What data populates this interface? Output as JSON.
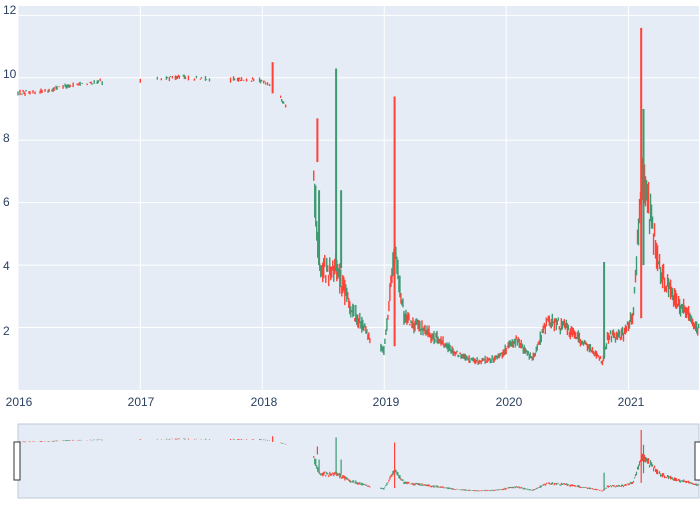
{
  "chart_data": {
    "type": "candlestick",
    "title": "",
    "xlabel": "",
    "ylabel": "",
    "x_ticks": [
      "2016",
      "2017",
      "2018",
      "2019",
      "2020",
      "2021"
    ],
    "y_ticks": [
      "2",
      "4",
      "6",
      "8",
      "10",
      "12"
    ],
    "ylim": [
      0,
      12.3
    ],
    "xlim": [
      "2016-01-01",
      "2021-07-31"
    ],
    "grid": true,
    "legend": "none",
    "range_slider": true,
    "colors": {
      "increasing": "#3d9970",
      "decreasing": "#ff4136",
      "plot_bg": "#e5ecf6",
      "grid": "#ffffff",
      "tick_text": "#2a3f5f"
    },
    "trend": [
      [
        "2016-01-01",
        9.5
      ],
      [
        "2016-04-01",
        9.6
      ],
      [
        "2016-07-01",
        9.8
      ],
      [
        "2016-10-01",
        9.9
      ],
      [
        "2017-01-01",
        9.9
      ],
      [
        "2017-04-01",
        10.0
      ],
      [
        "2017-07-01",
        10.0
      ],
      [
        "2017-10-01",
        9.95
      ],
      [
        "2018-01-01",
        9.9
      ],
      [
        "2018-02-01",
        9.7
      ],
      [
        "2018-03-01",
        9.3
      ],
      [
        "2018-04-01",
        8.6
      ],
      [
        "2018-05-01",
        7.9
      ],
      [
        "2018-06-01",
        7.4
      ],
      [
        "2018-06-20",
        4.0
      ],
      [
        "2018-07-15",
        3.8
      ],
      [
        "2018-08-10",
        4.0
      ],
      [
        "2018-09-01",
        3.2
      ],
      [
        "2018-10-01",
        2.5
      ],
      [
        "2018-11-01",
        2.0
      ],
      [
        "2018-12-01",
        1.5
      ],
      [
        "2019-01-01",
        1.3
      ],
      [
        "2019-02-01",
        4.5
      ],
      [
        "2019-03-01",
        2.4
      ],
      [
        "2019-04-01",
        2.1
      ],
      [
        "2019-06-01",
        1.7
      ],
      [
        "2019-08-01",
        1.2
      ],
      [
        "2019-10-01",
        0.9
      ],
      [
        "2019-12-01",
        1.0
      ],
      [
        "2020-02-01",
        1.6
      ],
      [
        "2020-03-20",
        1.0
      ],
      [
        "2020-05-01",
        2.2
      ],
      [
        "2020-07-01",
        2.0
      ],
      [
        "2020-09-01",
        1.4
      ],
      [
        "2020-10-15",
        0.9
      ],
      [
        "2020-11-01",
        1.7
      ],
      [
        "2020-12-15",
        1.8
      ],
      [
        "2021-01-15",
        2.3
      ],
      [
        "2021-02-10",
        7.0
      ],
      [
        "2021-03-01",
        6.0
      ],
      [
        "2021-04-01",
        4.0
      ],
      [
        "2021-05-15",
        3.0
      ],
      [
        "2021-06-15",
        2.6
      ],
      [
        "2021-07-31",
        1.9
      ]
    ],
    "gaps": [
      [
        "2016-09-15",
        "2016-12-31"
      ],
      [
        "2017-01-15",
        "2017-02-15"
      ],
      [
        "2017-08-01",
        "2017-09-20"
      ],
      [
        "2018-03-15",
        "2018-06-01"
      ],
      [
        "2018-11-20",
        "2018-12-20"
      ]
    ],
    "spikes": [
      {
        "date": "2018-02-01",
        "high": 10.5,
        "low": 9.5
      },
      {
        "date": "2018-06-15",
        "high": 8.7,
        "low": 7.3
      },
      {
        "date": "2018-06-20",
        "high": 6.4,
        "low": 4.0
      },
      {
        "date": "2018-08-10",
        "high": 10.3,
        "low": 3.8
      },
      {
        "date": "2018-08-25",
        "high": 6.4,
        "low": 3.9
      },
      {
        "date": "2019-02-01",
        "high": 9.4,
        "low": 1.4
      },
      {
        "date": "2020-10-20",
        "high": 4.1,
        "low": 1.0
      },
      {
        "date": "2021-02-08",
        "high": 11.6,
        "low": 2.3
      },
      {
        "date": "2021-02-15",
        "high": 9.0,
        "low": 4.0
      }
    ]
  }
}
